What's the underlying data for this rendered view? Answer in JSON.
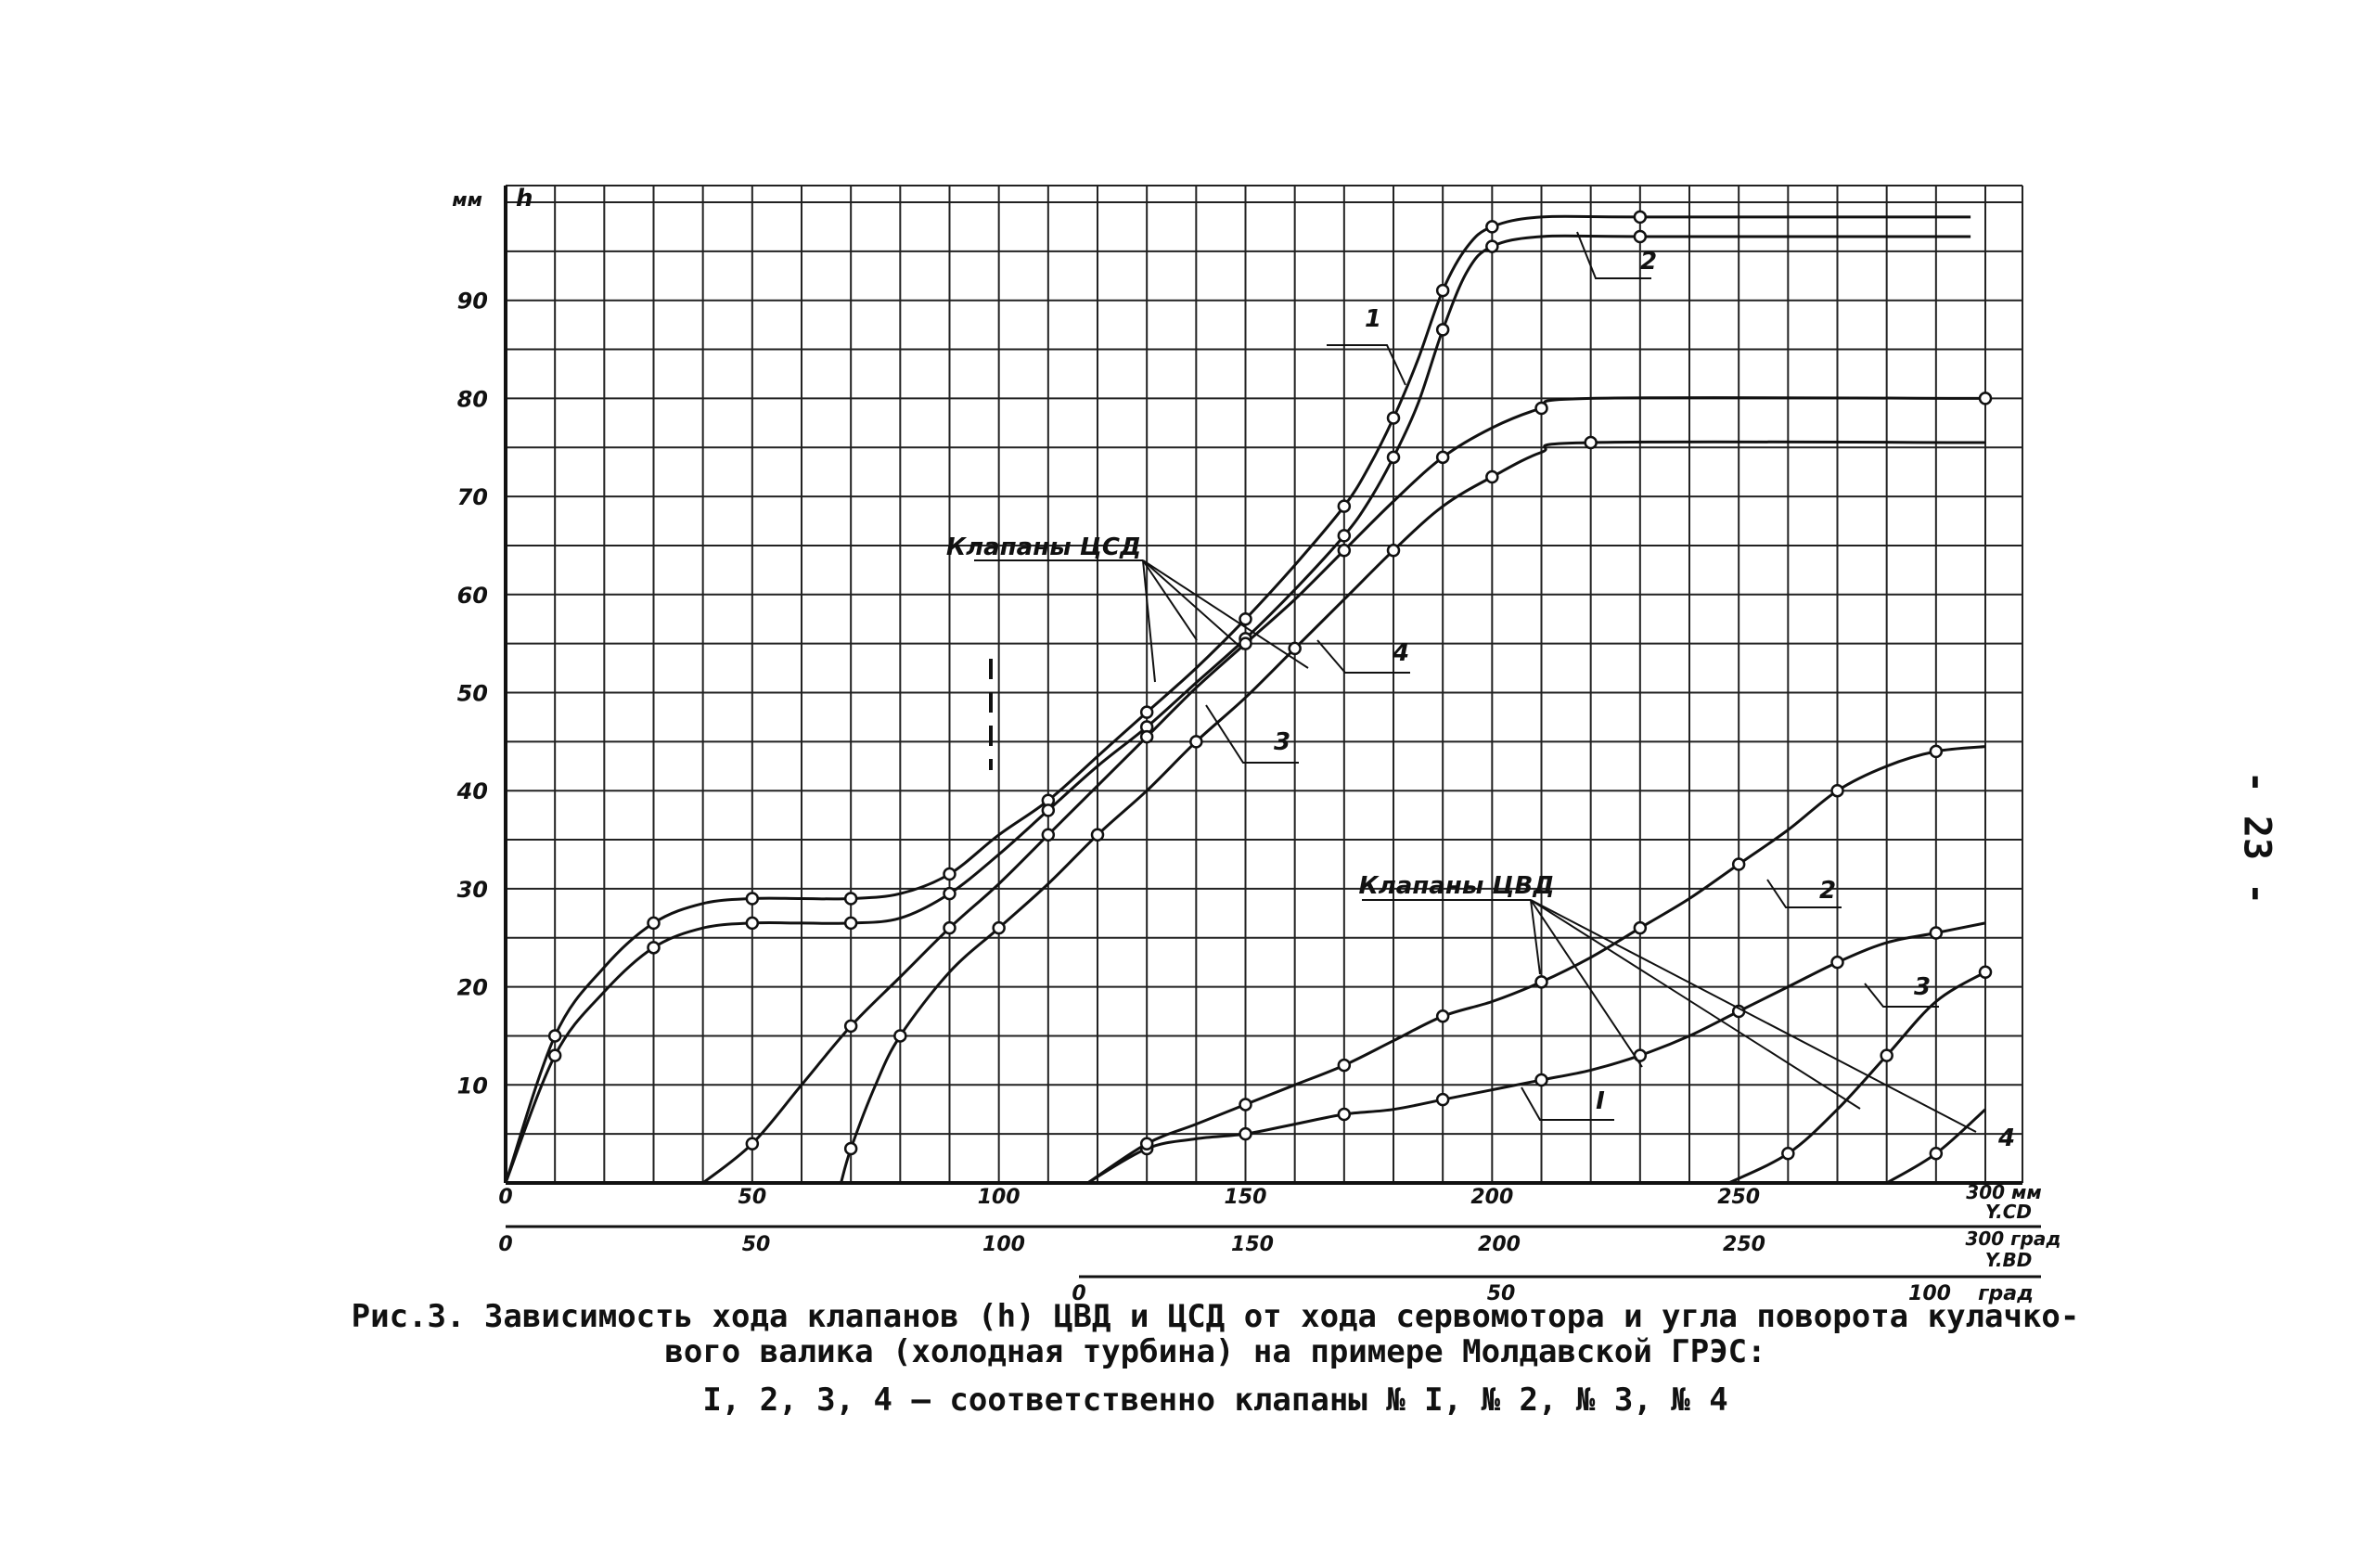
{
  "page_number": "- 23 -",
  "caption": {
    "line1": "Рис.3. Зависимость хода клапанов (h) ЦВД и ЦСД от хода сервомотора и угла поворота кулачко-",
    "line2": "вого валика (холодная турбина) на примере Молдавской ГРЭС:",
    "line3": "I, 2, 3, 4 – соответственно клапаны № I, № 2, № 3, № 4"
  },
  "chart_data": {
    "type": "line",
    "y_axis": {
      "unit": "мм",
      "symbol": "h",
      "range": [
        0,
        100
      ],
      "ticks": [
        "10",
        "20",
        "30",
        "40",
        "50",
        "60",
        "70",
        "80",
        "90"
      ]
    },
    "x_axis_servo": {
      "unit": "мм",
      "range": [
        0,
        300
      ],
      "ticks": [
        "0",
        "50",
        "100",
        "150",
        "200",
        "250",
        "300 мм"
      ],
      "label": "Y.CD"
    },
    "x_axis_csd": {
      "unit": "град",
      "range": [
        0,
        300
      ],
      "ticks": [
        "0",
        "50",
        "100",
        "150",
        "200",
        "250",
        "300 град"
      ],
      "label": "Y.BD"
    },
    "x_axis_cvd": {
      "unit": "град",
      "ticks": [
        "0",
        "50",
        "100",
        "град"
      ]
    },
    "group_labels": {
      "csd": "Клапаны ЦСД",
      "cvd": "Клапаны ЦВД"
    },
    "series": [
      {
        "name": "1",
        "group": "csd",
        "points": [
          [
            0,
            0
          ],
          [
            10,
            15
          ],
          [
            20,
            22
          ],
          [
            30,
            26.5
          ],
          [
            40,
            28.5
          ],
          [
            50,
            29
          ],
          [
            60,
            29
          ],
          [
            70,
            29
          ],
          [
            80,
            29.5
          ],
          [
            90,
            31.5
          ],
          [
            100,
            35.5
          ],
          [
            110,
            39
          ],
          [
            120,
            43.5
          ],
          [
            130,
            48
          ],
          [
            140,
            52.5
          ],
          [
            150,
            57.5
          ],
          [
            160,
            63
          ],
          [
            170,
            69
          ],
          [
            175,
            73
          ],
          [
            180,
            78
          ],
          [
            185,
            84
          ],
          [
            190,
            91
          ],
          [
            195,
            95.5
          ],
          [
            200,
            97.5
          ],
          [
            210,
            98.5
          ],
          [
            230,
            98.5
          ],
          [
            297,
            98.5
          ]
        ]
      },
      {
        "name": "2",
        "group": "csd",
        "points": [
          [
            0,
            0
          ],
          [
            10,
            13
          ],
          [
            20,
            19.5
          ],
          [
            30,
            24
          ],
          [
            40,
            26
          ],
          [
            50,
            26.5
          ],
          [
            60,
            26.5
          ],
          [
            70,
            26.5
          ],
          [
            80,
            27
          ],
          [
            90,
            29.5
          ],
          [
            100,
            33.5
          ],
          [
            110,
            38
          ],
          [
            120,
            42.5
          ],
          [
            130,
            46.5
          ],
          [
            140,
            51
          ],
          [
            150,
            55.5
          ],
          [
            160,
            60.5
          ],
          [
            170,
            66
          ],
          [
            175,
            69.5
          ],
          [
            180,
            74
          ],
          [
            185,
            79.5
          ],
          [
            190,
            87
          ],
          [
            195,
            93
          ],
          [
            200,
            95.5
          ],
          [
            210,
            96.5
          ],
          [
            230,
            96.5
          ],
          [
            297,
            96.5
          ]
        ]
      },
      {
        "name": "3",
        "group": "csd",
        "points": [
          [
            40,
            0
          ],
          [
            50,
            4
          ],
          [
            60,
            10
          ],
          [
            70,
            16
          ],
          [
            80,
            21
          ],
          [
            90,
            26
          ],
          [
            100,
            30.5
          ],
          [
            110,
            35.5
          ],
          [
            120,
            40.5
          ],
          [
            130,
            45.5
          ],
          [
            140,
            50.5
          ],
          [
            150,
            55
          ],
          [
            160,
            59.5
          ],
          [
            170,
            64.5
          ],
          [
            180,
            69.5
          ],
          [
            190,
            74
          ],
          [
            200,
            77
          ],
          [
            210,
            79
          ],
          [
            220,
            80
          ],
          [
            300,
            80
          ]
        ]
      },
      {
        "name": "4",
        "group": "csd",
        "points": [
          [
            68,
            0
          ],
          [
            70,
            3.5
          ],
          [
            75,
            10
          ],
          [
            80,
            15
          ],
          [
            90,
            21.5
          ],
          [
            100,
            26
          ],
          [
            110,
            30.5
          ],
          [
            120,
            35.5
          ],
          [
            130,
            40
          ],
          [
            140,
            45
          ],
          [
            150,
            49.5
          ],
          [
            160,
            54.5
          ],
          [
            170,
            59.5
          ],
          [
            180,
            64.5
          ],
          [
            190,
            69
          ],
          [
            200,
            72
          ],
          [
            210,
            74.5
          ],
          [
            220,
            75.5
          ],
          [
            300,
            75.5
          ]
        ]
      },
      {
        "name": "I",
        "group": "cvd",
        "points": [
          [
            118,
            0
          ],
          [
            130,
            3.5
          ],
          [
            140,
            4.5
          ],
          [
            150,
            5
          ],
          [
            160,
            6
          ],
          [
            170,
            7
          ],
          [
            180,
            7.5
          ],
          [
            190,
            8.5
          ],
          [
            200,
            9.5
          ],
          [
            210,
            10.5
          ],
          [
            220,
            11.5
          ],
          [
            230,
            13
          ],
          [
            240,
            15
          ],
          [
            250,
            17.5
          ],
          [
            260,
            20
          ],
          [
            270,
            22.5
          ],
          [
            280,
            24.5
          ],
          [
            290,
            25.5
          ],
          [
            300,
            26.5
          ]
        ]
      },
      {
        "name": "2",
        "group": "cvd",
        "points": [
          [
            118,
            0
          ],
          [
            130,
            4
          ],
          [
            140,
            6
          ],
          [
            150,
            8
          ],
          [
            160,
            10
          ],
          [
            170,
            12
          ],
          [
            180,
            14.5
          ],
          [
            190,
            17
          ],
          [
            200,
            18.5
          ],
          [
            210,
            20.5
          ],
          [
            220,
            23
          ],
          [
            230,
            26
          ],
          [
            240,
            29
          ],
          [
            250,
            32.5
          ],
          [
            260,
            36
          ],
          [
            270,
            40
          ],
          [
            280,
            42.5
          ],
          [
            290,
            44
          ],
          [
            300,
            44.5
          ]
        ]
      },
      {
        "name": "3",
        "group": "cvd",
        "points": [
          [
            248,
            0
          ],
          [
            260,
            3
          ],
          [
            270,
            7.5
          ],
          [
            280,
            13
          ],
          [
            290,
            18.5
          ],
          [
            300,
            21.5
          ]
        ]
      },
      {
        "name": "4",
        "group": "cvd",
        "points": [
          [
            280,
            0
          ],
          [
            290,
            3
          ],
          [
            300,
            7.5
          ]
        ]
      }
    ]
  }
}
